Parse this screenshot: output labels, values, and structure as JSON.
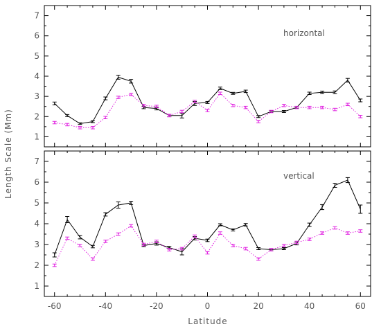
{
  "chart_data": {
    "type": "line",
    "ylabel": "Length Scale (Mm)",
    "xlabel": "Latitude",
    "x_ticks": [
      -60,
      -40,
      -20,
      0,
      20,
      40,
      60
    ],
    "y_ticks": [
      1,
      2,
      3,
      4,
      5,
      6,
      7
    ],
    "xlim": [
      -64,
      64
    ],
    "ylim": [
      0.5,
      7.5
    ],
    "x": [
      -60,
      -55,
      -50,
      -45,
      -40,
      -35,
      -30,
      -25,
      -20,
      -15,
      -10,
      -5,
      0,
      5,
      10,
      15,
      20,
      25,
      30,
      35,
      40,
      45,
      50,
      55,
      60
    ],
    "panels": [
      {
        "label": "horizontal",
        "label_position": "top-right",
        "series": [
          {
            "style": "solid",
            "color": "#000000",
            "values": [
              2.65,
              2.05,
              1.65,
              1.75,
              2.9,
              3.95,
              3.75,
              2.45,
              2.4,
              2.05,
              2.05,
              2.65,
              2.7,
              3.4,
              3.15,
              3.25,
              2.0,
              2.25,
              2.25,
              2.45,
              3.15,
              3.2,
              3.2,
              3.8,
              2.8
            ],
            "errors": [
              0.07,
              0.05,
              0.04,
              0.05,
              0.07,
              0.1,
              0.09,
              0.06,
              0.07,
              0.06,
              0.12,
              0.1,
              0.05,
              0.06,
              0.05,
              0.06,
              0.05,
              0.05,
              0.05,
              0.05,
              0.06,
              0.06,
              0.07,
              0.09,
              0.07
            ]
          },
          {
            "style": "dotted",
            "color": "#e020e0",
            "values": [
              1.7,
              1.6,
              1.45,
              1.45,
              1.95,
              2.95,
              3.1,
              2.55,
              2.5,
              2.05,
              2.25,
              2.75,
              2.3,
              3.15,
              2.55,
              2.45,
              1.75,
              2.25,
              2.55,
              2.45,
              2.45,
              2.45,
              2.35,
              2.6,
              2.0
            ]
          }
        ]
      },
      {
        "label": "vertical",
        "label_position": "top-right",
        "series": [
          {
            "style": "solid",
            "color": "#000000",
            "values": [
              2.5,
              4.2,
              3.35,
              2.9,
              4.45,
              4.9,
              5.0,
              2.95,
              3.05,
              2.85,
              2.65,
              3.3,
              3.2,
              3.95,
              3.7,
              3.95,
              2.8,
              2.75,
              2.8,
              3.05,
              3.95,
              4.8,
              5.85,
              6.1,
              4.7
            ],
            "errors": [
              0.1,
              0.15,
              0.08,
              0.06,
              0.08,
              0.15,
              0.08,
              0.05,
              0.08,
              0.06,
              0.15,
              0.08,
              0.06,
              0.05,
              0.05,
              0.06,
              0.05,
              0.05,
              0.05,
              0.07,
              0.08,
              0.12,
              0.1,
              0.12,
              0.2
            ]
          },
          {
            "style": "dotted",
            "color": "#e020e0",
            "values": [
              2.0,
              3.3,
              2.95,
              2.3,
              3.15,
              3.5,
              3.9,
              3.0,
              3.15,
              2.75,
              2.8,
              3.4,
              2.6,
              3.55,
              2.95,
              2.8,
              2.3,
              2.75,
              2.95,
              3.1,
              3.25,
              3.55,
              3.8,
              3.55,
              3.65
            ]
          }
        ]
      }
    ]
  }
}
